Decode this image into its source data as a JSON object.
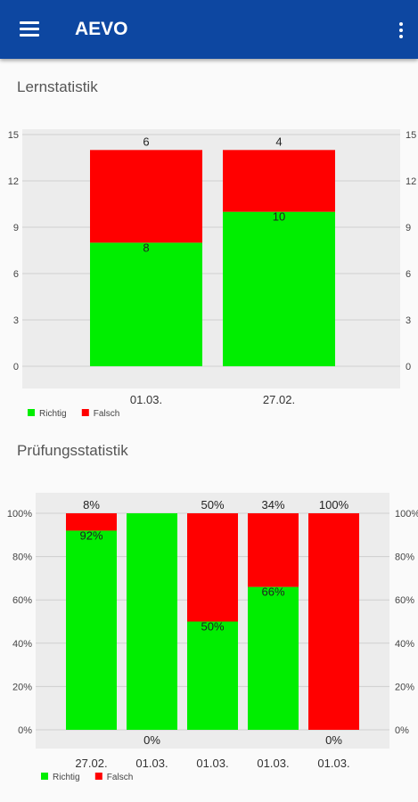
{
  "app": {
    "title": "AEVO",
    "menu_icon": "hamburger-menu-icon",
    "overflow_icon": "more-vert-icon"
  },
  "sections": {
    "learn_title": "Lernstatistik",
    "exam_title": "Prüfungsstatistik"
  },
  "colors": {
    "correct": "#00ee00",
    "wrong": "#ff0000",
    "appbar": "#0d47a1"
  },
  "chart_data": [
    {
      "type": "bar",
      "stacked": true,
      "categories": [
        "01.03.",
        "27.02."
      ],
      "series": [
        {
          "name": "Richtig",
          "values": [
            8,
            10
          ],
          "labels": [
            "8",
            "10"
          ]
        },
        {
          "name": "Falsch",
          "values": [
            6,
            4
          ],
          "labels": [
            "6",
            "4"
          ]
        }
      ],
      "ylim": [
        0,
        15
      ],
      "yticks": [
        "0",
        "3",
        "6",
        "9",
        "12",
        "15"
      ],
      "legend": "bottom-left",
      "grid": true
    },
    {
      "type": "bar",
      "stacked": true,
      "categories": [
        "27.02.",
        "01.03.",
        "01.03.",
        "01.03.",
        "01.03."
      ],
      "series": [
        {
          "name": "Richtig",
          "values": [
            92,
            100,
            50,
            66,
            0
          ],
          "labels": [
            "92%",
            "",
            "50%",
            "66%",
            "0%"
          ]
        },
        {
          "name": "Falsch",
          "values": [
            8,
            0,
            50,
            34,
            100
          ],
          "labels": [
            "8%",
            "0%",
            "50%",
            "34%",
            "100%"
          ]
        }
      ],
      "top_labels": [
        "8%",
        "100%",
        "50%",
        "34%",
        "100%"
      ],
      "ylim": [
        0,
        100
      ],
      "yticks": [
        "0%",
        "20%",
        "40%",
        "60%",
        "80%",
        "100%"
      ],
      "legend": "bottom-left",
      "grid": true
    }
  ]
}
